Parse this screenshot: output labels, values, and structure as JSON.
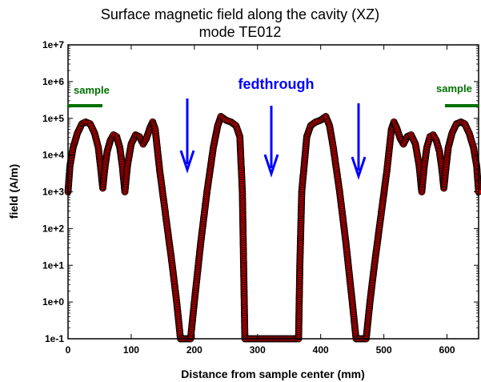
{
  "chart_data": {
    "type": "scatter",
    "title": "Surface magnetic field along the cavity (XZ)",
    "subtitle": "mode TE012",
    "xlabel": "Distance from sample center (mm)",
    "ylabel": "field (A/m)",
    "xlim": [
      0,
      650
    ],
    "ylim_log10": [
      -1,
      7
    ],
    "y_scale": "log",
    "x_ticks": [
      0,
      100,
      200,
      300,
      400,
      500,
      600
    ],
    "x_tick_labels": [
      "0",
      "100",
      "200",
      "300",
      "400",
      "500",
      "600"
    ],
    "y_ticks_log10": [
      -1,
      0,
      1,
      2,
      3,
      4,
      5,
      6,
      7
    ],
    "y_tick_labels": [
      "1e-1",
      "1e+0",
      "1e+1",
      "1e+2",
      "1e+3",
      "1e+4",
      "1e+5",
      "1e+6",
      "1e+7"
    ],
    "grid": false,
    "marker": {
      "fill": "#e00000",
      "stroke": "#000000",
      "shape": "circle"
    },
    "series": [
      {
        "y_log10_points": [
          [
            0,
            3.0
          ],
          [
            3,
            3.7
          ],
          [
            8,
            4.2
          ],
          [
            15,
            4.6
          ],
          [
            22,
            4.85
          ],
          [
            28,
            4.9
          ],
          [
            35,
            4.85
          ],
          [
            42,
            4.6
          ],
          [
            48,
            4.2
          ],
          [
            52,
            3.6
          ],
          [
            55,
            3.1
          ],
          [
            58,
            3.6
          ],
          [
            62,
            4.1
          ],
          [
            67,
            4.4
          ],
          [
            72,
            4.55
          ],
          [
            77,
            4.5
          ],
          [
            82,
            4.2
          ],
          [
            86,
            3.7
          ],
          [
            90,
            3.0
          ],
          [
            94,
            3.7
          ],
          [
            100,
            4.3
          ],
          [
            107,
            4.55
          ],
          [
            113,
            4.5
          ],
          [
            119,
            4.3
          ],
          [
            124,
            4.45
          ],
          [
            130,
            4.75
          ],
          [
            134,
            4.9
          ],
          [
            138,
            4.7
          ],
          [
            145,
            3.6
          ],
          [
            155,
            2.3
          ],
          [
            165,
            1.0
          ],
          [
            172,
            0.0
          ],
          [
            178,
            -1.0
          ],
          [
            186,
            -1.0
          ],
          [
            194,
            -1.0
          ],
          [
            200,
            0.0
          ],
          [
            210,
            1.6
          ],
          [
            220,
            3.0
          ],
          [
            230,
            4.2
          ],
          [
            237,
            4.8
          ],
          [
            242,
            5.05
          ],
          [
            250,
            4.95
          ],
          [
            258,
            4.9
          ],
          [
            266,
            4.8
          ],
          [
            272,
            4.5
          ],
          [
            276,
            3.0
          ],
          [
            278,
            1.0
          ],
          [
            280,
            -1.0
          ],
          [
            365,
            -1.0
          ],
          [
            367,
            1.0
          ],
          [
            370,
            3.0
          ],
          [
            378,
            4.5
          ],
          [
            384,
            4.8
          ],
          [
            392,
            4.9
          ],
          [
            400,
            4.95
          ],
          [
            408,
            5.05
          ],
          [
            414,
            4.8
          ],
          [
            420,
            4.2
          ],
          [
            430,
            3.0
          ],
          [
            440,
            1.6
          ],
          [
            450,
            0.0
          ],
          [
            456,
            -1.0
          ],
          [
            464,
            -1.0
          ],
          [
            472,
            -1.0
          ],
          [
            478,
            0.0
          ],
          [
            485,
            1.0
          ],
          [
            495,
            2.3
          ],
          [
            505,
            3.6
          ],
          [
            512,
            4.7
          ],
          [
            516,
            4.9
          ],
          [
            520,
            4.75
          ],
          [
            526,
            4.45
          ],
          [
            531,
            4.3
          ],
          [
            537,
            4.5
          ],
          [
            543,
            4.55
          ],
          [
            550,
            4.3
          ],
          [
            556,
            3.7
          ],
          [
            560,
            3.0
          ],
          [
            564,
            3.7
          ],
          [
            568,
            4.2
          ],
          [
            573,
            4.5
          ],
          [
            578,
            4.55
          ],
          [
            583,
            4.4
          ],
          [
            588,
            4.1
          ],
          [
            592,
            3.6
          ],
          [
            595,
            3.1
          ],
          [
            598,
            3.6
          ],
          [
            602,
            4.2
          ],
          [
            608,
            4.6
          ],
          [
            615,
            4.85
          ],
          [
            622,
            4.9
          ],
          [
            628,
            4.85
          ],
          [
            635,
            4.6
          ],
          [
            642,
            4.2
          ],
          [
            647,
            3.7
          ],
          [
            650,
            3.0
          ]
        ]
      }
    ],
    "annotations": {
      "sample_left": "sample",
      "sample_right": "sample",
      "feedthrough": "fedthrough",
      "sample_color": "#007000",
      "feedthrough_color": "#0000ff"
    }
  }
}
